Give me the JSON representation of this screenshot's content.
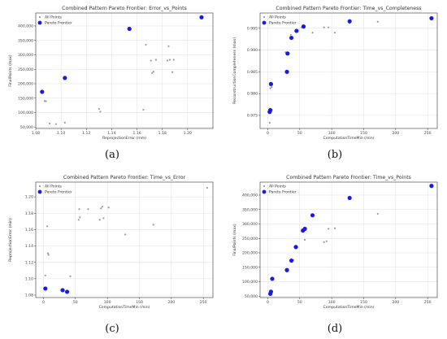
{
  "chart_data": [
    {
      "id": "a",
      "type": "scatter",
      "caption": "(a)",
      "title": "Combined Pattern Pareto Frontier: Error_vs_Points",
      "xlabel": "ReprojectionError (mm)",
      "ylabel": "FinalPoints (max)",
      "xlim": [
        1.08,
        1.22
      ],
      "ylim": [
        45000,
        445000
      ],
      "xticks": [
        1.08,
        1.1,
        1.12,
        1.14,
        1.16,
        1.18,
        1.2
      ],
      "xtick_labels": [
        "1.08",
        "1.10",
        "1.12",
        "1.14",
        "1.16",
        "1.18",
        "1.20"
      ],
      "yticks": [
        50000,
        100000,
        150000,
        200000,
        250000,
        300000,
        350000,
        400000
      ],
      "ytick_labels": [
        "50,000",
        "100,000",
        "150,000",
        "200,000",
        "250,000",
        "300,000",
        "350,000",
        "400,000"
      ],
      "grid": true,
      "legend": "top-left",
      "series": [
        {
          "name": "All Points",
          "color": "#9a9a9a",
          "marker": "small",
          "x": [
            1.087,
            1.088,
            1.091,
            1.096,
            1.103,
            1.13,
            1.131,
            1.165,
            1.167,
            1.171,
            1.172,
            1.173,
            1.175,
            1.184,
            1.185,
            1.186,
            1.188,
            1.189
          ],
          "y": [
            140000,
            139000,
            62000,
            60000,
            65000,
            113000,
            103000,
            110000,
            335000,
            280000,
            237000,
            242000,
            283000,
            280000,
            330000,
            283000,
            240000,
            283000
          ]
        },
        {
          "name": "Pareto Frontier",
          "color": "#1a1ae6",
          "marker": "large",
          "x": [
            1.085,
            1.103,
            1.154,
            1.211
          ],
          "y": [
            172000,
            220000,
            390000,
            430000
          ]
        }
      ]
    },
    {
      "id": "b",
      "type": "scatter",
      "caption": "(b)",
      "title": "Combined Pattern Pareto Frontier: Time_vs_Completeness",
      "xlabel": "ComputationTimeMin (min)",
      "ylabel": "ReconstructionCompleteness (max)",
      "xlim": [
        -12,
        265
      ],
      "ylim": [
        0.972,
        0.9985
      ],
      "xticks": [
        0,
        50,
        100,
        150,
        200,
        250
      ],
      "xtick_labels": [
        "0",
        "50",
        "100",
        "150",
        "200",
        "250"
      ],
      "yticks": [
        0.975,
        0.98,
        0.985,
        0.99,
        0.995
      ],
      "ytick_labels": [
        "0.975",
        "0.980",
        "0.985",
        "0.990",
        "0.995"
      ],
      "grid": true,
      "legend": "top-left",
      "series": [
        {
          "name": "All Points",
          "color": "#9a9a9a",
          "marker": "small",
          "x": [
            3,
            4,
            6,
            7,
            28,
            36,
            45,
            53,
            55,
            70,
            88,
            95,
            105,
            128,
            172
          ],
          "y": [
            0.9733,
            0.9812,
            0.9815,
            0.982,
            0.9895,
            0.9935,
            0.9945,
            0.9952,
            0.9955,
            0.994,
            0.9952,
            0.9952,
            0.994,
            0.9962,
            0.9965
          ]
        },
        {
          "name": "Pareto Frontier",
          "color": "#1a1ae6",
          "marker": "large",
          "x": [
            3,
            4,
            5,
            30,
            31,
            37,
            45,
            56,
            128,
            256
          ],
          "y": [
            0.9758,
            0.9762,
            0.9822,
            0.985,
            0.9892,
            0.9928,
            0.9944,
            0.9954,
            0.9966,
            0.9973
          ]
        }
      ]
    },
    {
      "id": "c",
      "type": "scatter",
      "caption": "(c)",
      "title": "Combined Pattern Pareto Frontier: Time_vs_Error",
      "xlabel": "ComputationTimeMin (min)",
      "ylabel": "ReprojectionError (min)",
      "xlim": [
        -12,
        265
      ],
      "ylim": [
        1.077,
        1.218
      ],
      "xticks": [
        0,
        50,
        100,
        150,
        200,
        250
      ],
      "xtick_labels": [
        "0",
        "50",
        "100",
        "150",
        "200",
        "250"
      ],
      "yticks": [
        1.08,
        1.1,
        1.12,
        1.14,
        1.16,
        1.18,
        1.2
      ],
      "ytick_labels": [
        "1.08",
        "1.10",
        "1.12",
        "1.14",
        "1.16",
        "1.18",
        "1.20"
      ],
      "grid": true,
      "legend": "top-left",
      "series": [
        {
          "name": "All Points",
          "color": "#9a9a9a",
          "marker": "small",
          "x": [
            3,
            6,
            7,
            8,
            42,
            55,
            56,
            57,
            70,
            88,
            90,
            92,
            94,
            102,
            128,
            172,
            256
          ],
          "y": [
            1.104,
            1.164,
            1.131,
            1.129,
            1.103,
            1.172,
            1.185,
            1.175,
            1.185,
            1.172,
            1.186,
            1.188,
            1.174,
            1.187,
            1.154,
            1.166,
            1.211
          ]
        },
        {
          "name": "Pareto Frontier",
          "color": "#1a1ae6",
          "marker": "large",
          "x": [
            3,
            30,
            37
          ],
          "y": [
            1.088,
            1.086,
            1.084
          ]
        }
      ]
    },
    {
      "id": "d",
      "type": "scatter",
      "caption": "(d)",
      "title": "Combined Pattern Pareto Frontier: Time_vs_Points",
      "xlabel": "ComputationTimeMin (min)",
      "ylabel": "FinalPoints (max)",
      "xlim": [
        -12,
        265
      ],
      "ylim": [
        45000,
        445000
      ],
      "xticks": [
        0,
        50,
        100,
        150,
        200,
        250
      ],
      "xtick_labels": [
        "0",
        "50",
        "100",
        "150",
        "200",
        "250"
      ],
      "yticks": [
        50000,
        100000,
        150000,
        200000,
        250000,
        300000,
        350000,
        400000
      ],
      "ytick_labels": [
        "50,000",
        "100,000",
        "150,000",
        "200,000",
        "250,000",
        "300,000",
        "350,000",
        "400,000"
      ],
      "grid": true,
      "legend": "top-left",
      "series": [
        {
          "name": "All Points",
          "color": "#9a9a9a",
          "marker": "small",
          "x": [
            4,
            5,
            6,
            8,
            40,
            55,
            57,
            58,
            88,
            92,
            95,
            105,
            172
          ],
          "y": [
            60000,
            62000,
            110000,
            112000,
            175000,
            280000,
            283000,
            245000,
            237000,
            240000,
            283000,
            285000,
            335000
          ]
        },
        {
          "name": "Pareto Frontier",
          "color": "#1a1ae6",
          "marker": "large",
          "x": [
            4,
            5,
            7,
            30,
            37,
            44,
            55,
            58,
            70,
            128,
            256
          ],
          "y": [
            58000,
            65000,
            110000,
            140000,
            173000,
            220000,
            277000,
            283000,
            330000,
            390000,
            432000
          ]
        }
      ]
    }
  ]
}
